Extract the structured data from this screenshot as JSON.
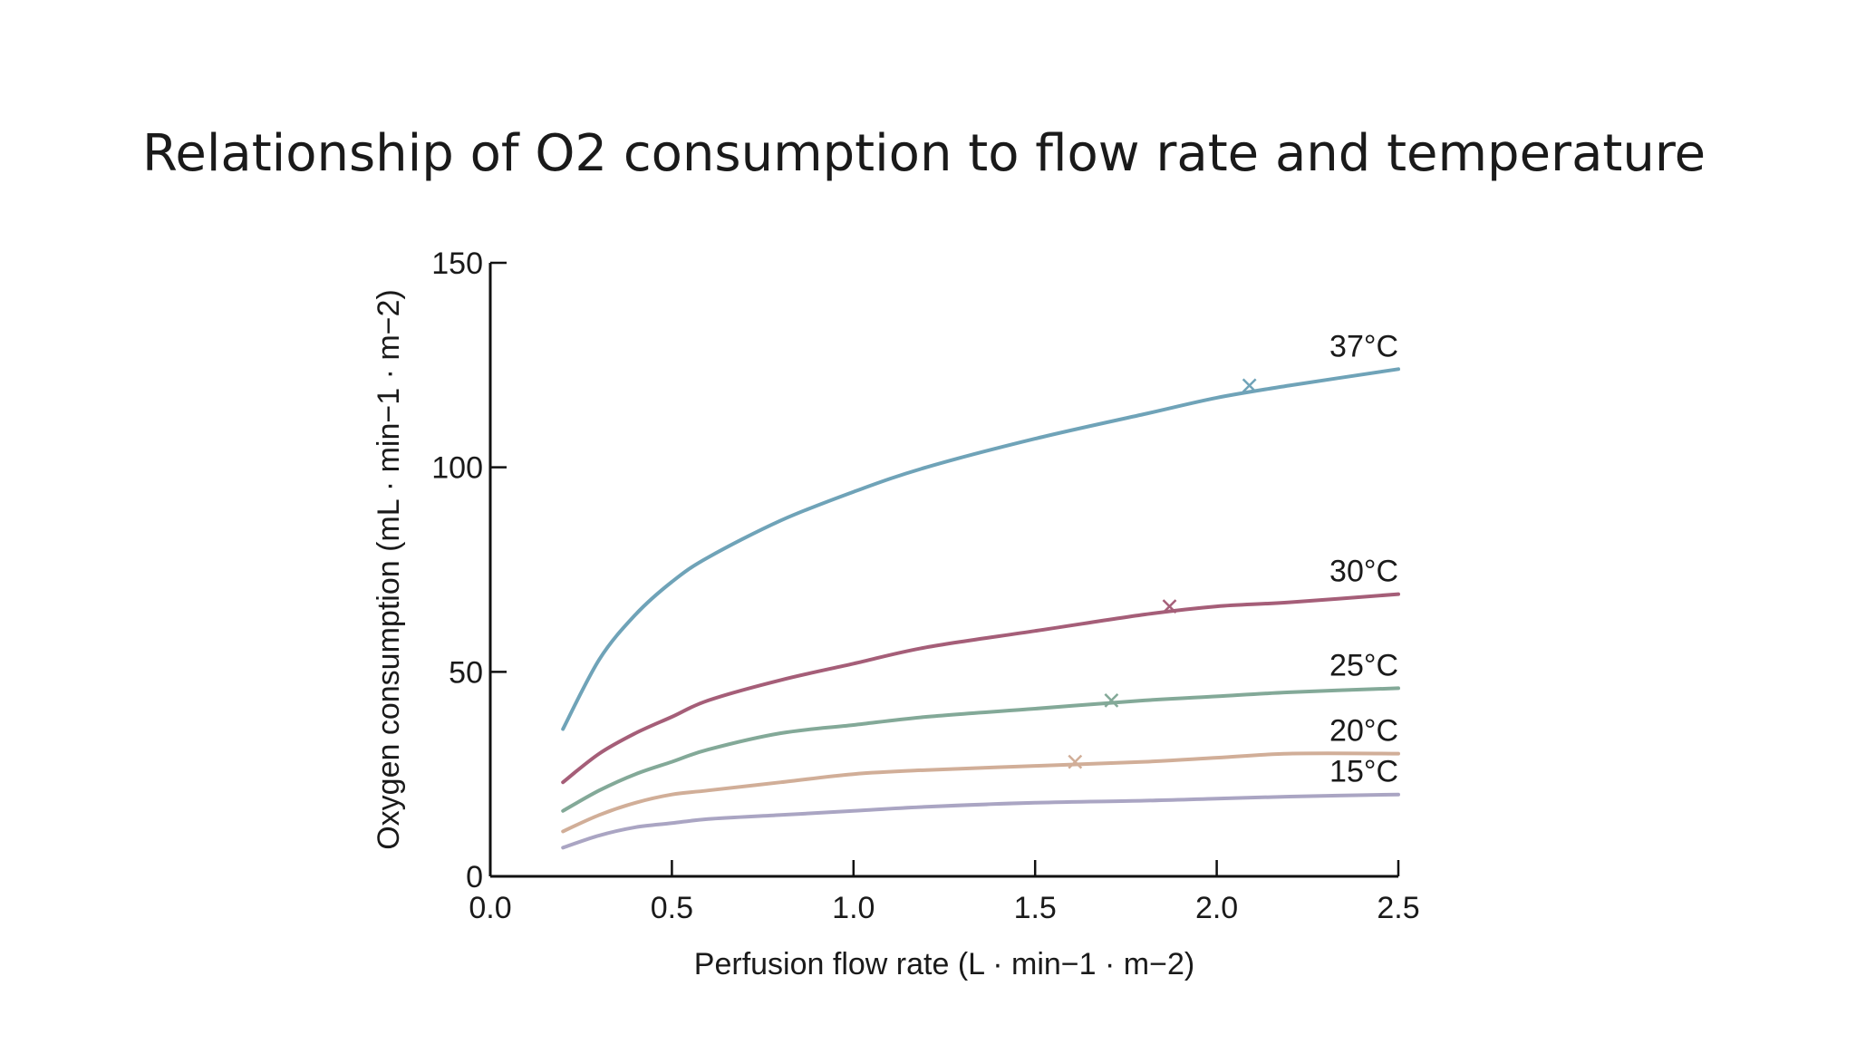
{
  "slide": {
    "title": "Relationship of O2 consumption to flow rate and temperature"
  },
  "chart_data": {
    "type": "line",
    "xlabel": "Perfusion flow rate (L · min−1 · m−2)",
    "ylabel": "Oxygen consumption (mL · min−1 · m−2)",
    "xlim": [
      0,
      2.5
    ],
    "ylim": [
      0,
      150
    ],
    "xticks": [
      "0.0",
      "0.5",
      "1.0",
      "1.5",
      "2.0",
      "2.5"
    ],
    "yticks": [
      "0",
      "50",
      "100",
      "150"
    ],
    "grid": false,
    "legend": "inline labels at right end of each curve",
    "x": [
      0.2,
      0.3,
      0.4,
      0.5,
      0.6,
      0.8,
      1.0,
      1.2,
      1.5,
      1.8,
      2.0,
      2.2,
      2.5
    ],
    "series": [
      {
        "name": "37°C",
        "color": "#6fa3b8",
        "values": [
          36,
          53,
          64,
          72,
          78,
          87,
          94,
          100,
          107,
          113,
          117,
          120,
          124
        ],
        "marker": {
          "x": 2.09,
          "y": 120
        }
      },
      {
        "name": "30°C",
        "color": "#a55e78",
        "values": [
          23,
          30,
          35,
          39,
          43,
          48,
          52,
          56,
          60,
          64,
          66,
          67,
          69
        ],
        "marker": {
          "x": 1.87,
          "y": 66
        }
      },
      {
        "name": "25°C",
        "color": "#83a998",
        "values": [
          16,
          21,
          25,
          28,
          31,
          35,
          37,
          39,
          41,
          43,
          44,
          45,
          46
        ],
        "marker": {
          "x": 1.71,
          "y": 43
        }
      },
      {
        "name": "20°C",
        "color": "#d1ae98",
        "values": [
          11,
          15,
          18,
          20,
          21,
          23,
          25,
          26,
          27,
          28,
          29,
          30,
          30
        ],
        "marker": {
          "x": 1.61,
          "y": 28
        }
      },
      {
        "name": "15°C",
        "color": "#aaa5c3",
        "values": [
          7,
          10,
          12,
          13,
          14,
          15,
          16,
          17,
          18,
          18.5,
          19,
          19.5,
          20
        ],
        "marker": null
      }
    ]
  }
}
